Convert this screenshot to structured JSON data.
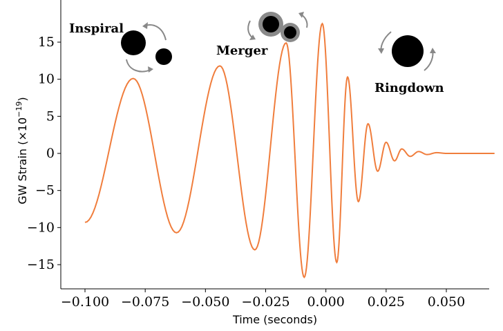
{
  "chart_data": {
    "type": "line",
    "title": "",
    "xlabel": "Time (seconds)",
    "ylabel": "GW Strain (×10",
    "ylabel_exponent": "−19",
    "ylabel_suffix": ")",
    "xlim": [
      -0.105,
      0.07
    ],
    "ylim": [
      -18.5,
      19
    ],
    "xticks": [
      -0.1,
      -0.075,
      -0.05,
      -0.025,
      0.0,
      0.025,
      0.05
    ],
    "xtick_labels": [
      "−0.100",
      "−0.075",
      "−0.050",
      "−0.025",
      "0.000",
      "0.025",
      "0.050"
    ],
    "yticks": [
      -15,
      -10,
      -5,
      0,
      5,
      10,
      15
    ],
    "ytick_labels": [
      "−15",
      "−10",
      "−5",
      "0",
      "5",
      "10",
      "15"
    ],
    "grid": false,
    "line_color": "#f07d3c",
    "series": [
      {
        "x": [
          -0.1,
          -0.08,
          -0.062,
          -0.044,
          -0.0295,
          -0.0165,
          -0.009,
          -0.0015,
          0.0045,
          0.009,
          0.0135,
          0.0175,
          0.0215,
          0.025,
          0.0285,
          0.0315,
          0.035,
          0.0385,
          0.042,
          0.046,
          0.05,
          0.07
        ],
        "y": [
          -9.3,
          10.1,
          -10.7,
          11.8,
          -13.0,
          14.9,
          -16.7,
          17.5,
          -14.7,
          10.3,
          -6.5,
          4.0,
          -2.4,
          1.5,
          -1.0,
          0.6,
          -0.4,
          0.25,
          -0.15,
          0.1,
          0.0,
          0.0
        ]
      }
    ],
    "annotations": [
      {
        "text": "Inspiral"
      },
      {
        "text": "Merger"
      },
      {
        "text": "Ringdown"
      }
    ]
  }
}
